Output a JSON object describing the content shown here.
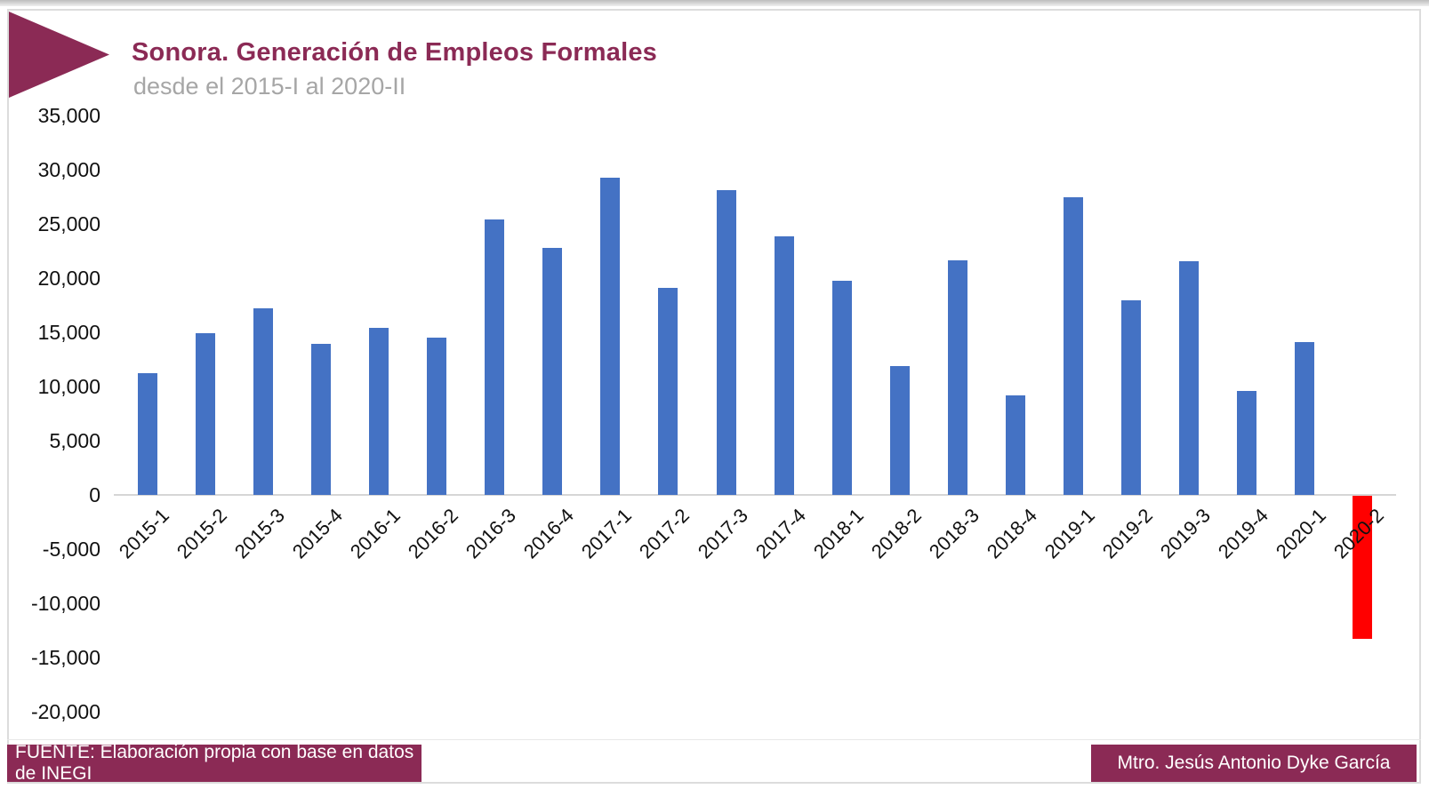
{
  "header": {
    "title": "Sonora. Generación de Empleos Formales",
    "subtitle": "desde el 2015-I al 2020-II"
  },
  "footer": {
    "source": "FUENTE: Elaboración propia con base en datos de INEGI",
    "author": "Mtro. Jesús Antonio Dyke García"
  },
  "colors": {
    "accent_maroon": "#8b2a55",
    "bar_positive_blue": "#4472c4",
    "bar_negative_red": "#ff0000",
    "axis_line_gray": "#d6d6d6",
    "subtitle_gray": "#a6a6a6",
    "frame_border_gray": "#dcdcdc",
    "tick_text": "#111111"
  },
  "chart_data": {
    "type": "bar",
    "title": "Sonora. Generación de Empleos Formales",
    "subtitle": "desde el 2015-I al 2020-II",
    "xlabel": "",
    "ylabel": "",
    "categories": [
      "2015-1",
      "2015-2",
      "2015-3",
      "2015-4",
      "2016-1",
      "2016-2",
      "2016-3",
      "2016-4",
      "2017-1",
      "2017-2",
      "2017-3",
      "2017-4",
      "2018-1",
      "2018-2",
      "2018-3",
      "2018-4",
      "2019-1",
      "2019-2",
      "2019-3",
      "2019-4",
      "2020-1",
      "2020-2"
    ],
    "values": [
      11200,
      14900,
      17200,
      13900,
      15400,
      14500,
      25400,
      22800,
      29200,
      19100,
      28100,
      23800,
      19700,
      11900,
      21600,
      9200,
      27400,
      17900,
      21500,
      9600,
      14100,
      -13200
    ],
    "ylim": [
      -20000,
      35000
    ],
    "ytick_interval": 5000,
    "ytick_values": [
      35000,
      30000,
      25000,
      20000,
      15000,
      10000,
      5000,
      0,
      -5000,
      -10000,
      -15000,
      -20000
    ],
    "ytick_labels": [
      "35,000",
      "30,000",
      "25,000",
      "20,000",
      "15,000",
      "10,000",
      "5,000",
      "0",
      "-5,000",
      "-10,000",
      "-15,000",
      "-20,000"
    ],
    "grid": false,
    "legend": false,
    "x_labels_rotation_deg": -45,
    "bar_color_rule": "positive values blue, negative values red"
  }
}
